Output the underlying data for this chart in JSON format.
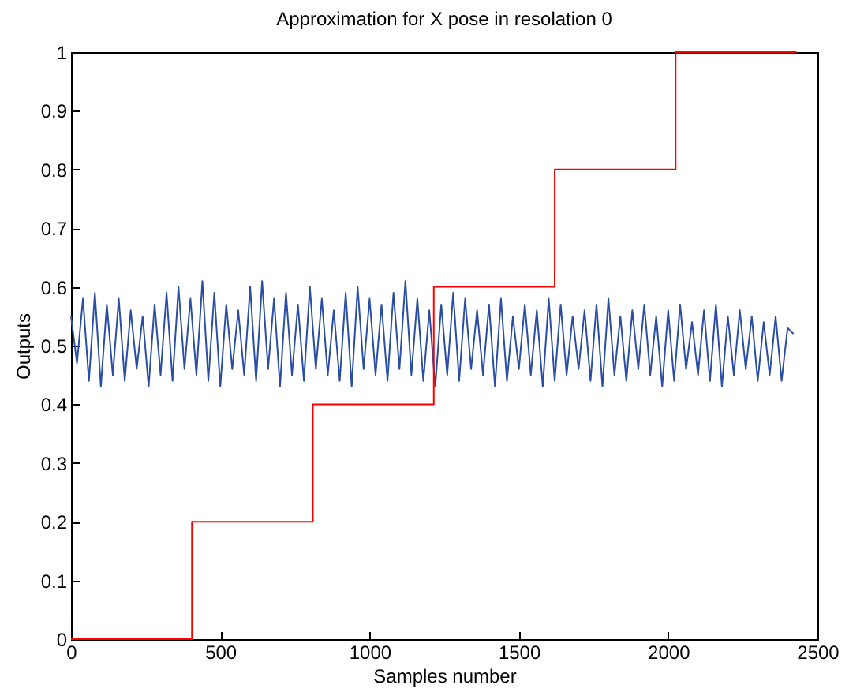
{
  "chart_data": {
    "type": "line",
    "title": "Approximation for X pose in resolation 0",
    "xlabel": "Samples number",
    "ylabel": "Outputs",
    "xlim": [
      0,
      2500
    ],
    "xticks": [
      0,
      500,
      1000,
      1500,
      2000,
      2500
    ],
    "ylim": [
      0,
      1
    ],
    "yticks": [
      0,
      0.1,
      0.2,
      0.3,
      0.4,
      0.5,
      0.6,
      0.7,
      0.8,
      0.9,
      1
    ],
    "series": [
      {
        "type": "line",
        "color": "#2a4ea6",
        "x": [
          0,
          20,
          40,
          60,
          80,
          100,
          120,
          140,
          160,
          180,
          200,
          220,
          240,
          260,
          280,
          300,
          320,
          340,
          360,
          380,
          400,
          420,
          440,
          460,
          480,
          500,
          520,
          540,
          560,
          580,
          600,
          620,
          640,
          660,
          680,
          700,
          720,
          740,
          760,
          780,
          800,
          820,
          840,
          860,
          880,
          900,
          920,
          940,
          960,
          980,
          1000,
          1020,
          1040,
          1060,
          1080,
          1100,
          1120,
          1140,
          1160,
          1180,
          1200,
          1220,
          1240,
          1260,
          1280,
          1300,
          1320,
          1340,
          1360,
          1380,
          1400,
          1420,
          1440,
          1460,
          1480,
          1500,
          1520,
          1540,
          1560,
          1580,
          1600,
          1620,
          1640,
          1660,
          1680,
          1700,
          1720,
          1740,
          1760,
          1780,
          1800,
          1820,
          1840,
          1860,
          1880,
          1900,
          1920,
          1940,
          1960,
          1980,
          2000,
          2020,
          2040,
          2060,
          2080,
          2100,
          2120,
          2140,
          2160,
          2180,
          2200,
          2220,
          2240,
          2260,
          2280,
          2300,
          2320,
          2340,
          2360,
          2380,
          2400,
          2420
        ],
        "values": [
          0.55,
          0.47,
          0.58,
          0.44,
          0.59,
          0.43,
          0.57,
          0.45,
          0.58,
          0.44,
          0.56,
          0.46,
          0.55,
          0.43,
          0.57,
          0.45,
          0.59,
          0.44,
          0.6,
          0.46,
          0.58,
          0.45,
          0.61,
          0.44,
          0.59,
          0.43,
          0.57,
          0.46,
          0.56,
          0.45,
          0.6,
          0.44,
          0.61,
          0.46,
          0.58,
          0.43,
          0.59,
          0.45,
          0.57,
          0.44,
          0.6,
          0.46,
          0.58,
          0.45,
          0.56,
          0.44,
          0.59,
          0.43,
          0.6,
          0.46,
          0.58,
          0.45,
          0.57,
          0.44,
          0.59,
          0.46,
          0.61,
          0.45,
          0.58,
          0.44,
          0.56,
          0.43,
          0.57,
          0.45,
          0.59,
          0.44,
          0.58,
          0.46,
          0.56,
          0.45,
          0.57,
          0.43,
          0.58,
          0.44,
          0.55,
          0.46,
          0.57,
          0.45,
          0.56,
          0.43,
          0.58,
          0.44,
          0.57,
          0.45,
          0.55,
          0.46,
          0.56,
          0.44,
          0.57,
          0.43,
          0.58,
          0.45,
          0.55,
          0.44,
          0.56,
          0.46,
          0.57,
          0.45,
          0.55,
          0.43,
          0.56,
          0.44,
          0.57,
          0.46,
          0.54,
          0.45,
          0.56,
          0.44,
          0.57,
          0.43,
          0.55,
          0.45,
          0.56,
          0.46,
          0.55,
          0.44,
          0.54,
          0.45,
          0.55,
          0.44,
          0.53,
          0.52
        ]
      },
      {
        "type": "step",
        "color": "#ff0000",
        "x": [
          0,
          405,
          810,
          1215,
          1620,
          2025,
          2430
        ],
        "values": [
          0,
          0.2,
          0.4,
          0.6,
          0.8,
          1,
          1
        ]
      }
    ]
  }
}
